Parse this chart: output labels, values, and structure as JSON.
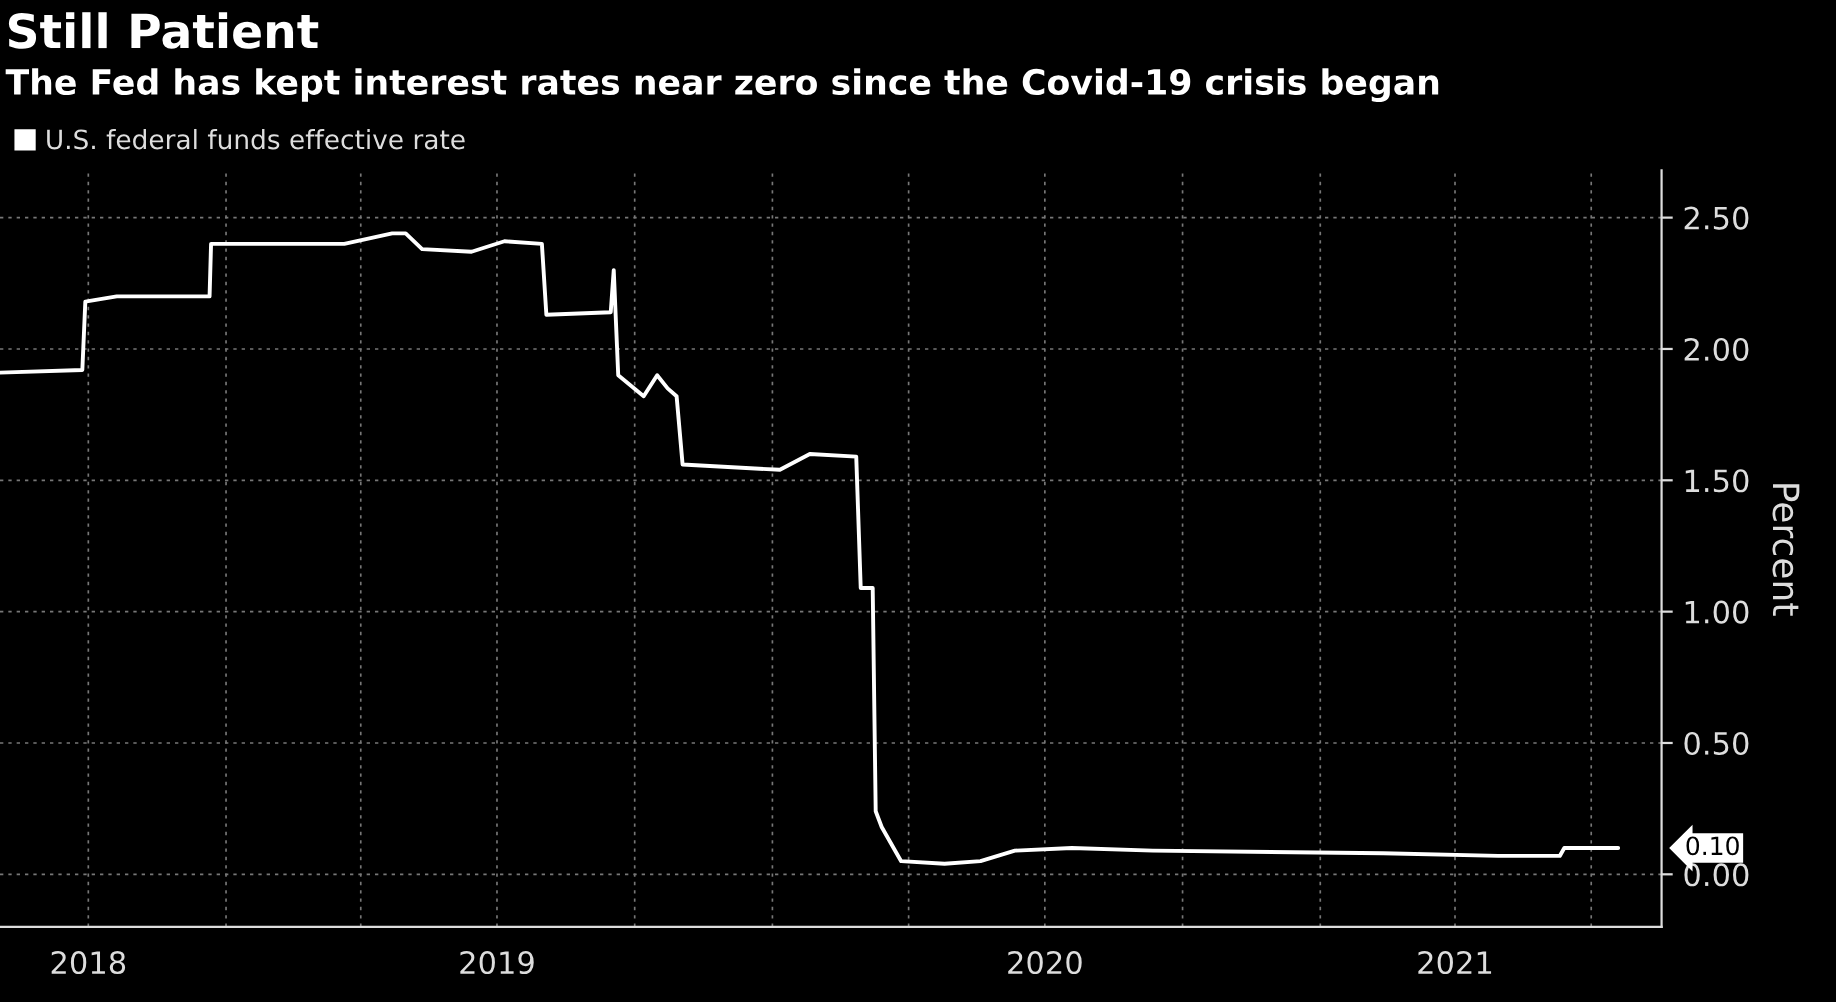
{
  "chart_data": {
    "type": "line",
    "title": "Still Patient",
    "subtitle": "The Fed has kept interest rates near zero since the Covid-19 crisis began",
    "ylabel": "Percent",
    "x": [
      "2018-08-03",
      "2018-09-27",
      "2018-09-29",
      "2018-10-20",
      "2018-12-21",
      "2018-12-22",
      "2019-03-21",
      "2019-04-22",
      "2019-05-01",
      "2019-05-12",
      "2019-06-14",
      "2019-07-06",
      "2019-07-31",
      "2019-08-03",
      "2019-09-15",
      "2019-09-17",
      "2019-09-20",
      "2019-10-07",
      "2019-10-16",
      "2019-10-23",
      "2019-10-29",
      "2019-11-02",
      "2020-01-06",
      "2020-01-26",
      "2020-02-26",
      "2020-02-29",
      "2020-03-08",
      "2020-03-10",
      "2020-03-14",
      "2020-03-23",
      "2020-03-27",
      "2020-04-25",
      "2020-05-19",
      "2020-06-11",
      "2020-07-19",
      "2020-09-11",
      "2021-02-12",
      "2021-04-30",
      "2021-06-10",
      "2021-06-13",
      "2021-07-19"
    ],
    "series": [
      {
        "name": "U.S. federal funds effective rate",
        "color": "#ffffff",
        "values": [
          1.91,
          1.92,
          2.18,
          2.2,
          2.2,
          2.4,
          2.4,
          2.44,
          2.44,
          2.38,
          2.37,
          2.41,
          2.4,
          2.13,
          2.14,
          2.3,
          1.9,
          1.82,
          1.9,
          1.85,
          1.82,
          1.56,
          1.54,
          1.6,
          1.59,
          1.09,
          1.09,
          0.24,
          0.18,
          0.09,
          0.05,
          0.04,
          0.05,
          0.09,
          0.1,
          0.09,
          0.08,
          0.07,
          0.07,
          0.1,
          0.1
        ]
      }
    ],
    "xlim": [
      "2018-08-03",
      "2021-08-17"
    ],
    "xticks": [
      {
        "value": "2018-10-01",
        "label": "2018"
      },
      {
        "value": "2019-01-01",
        "label": null
      },
      {
        "value": "2019-04-01",
        "label": null
      },
      {
        "value": "2019-07-01",
        "label": "2019"
      },
      {
        "value": "2019-10-01",
        "label": null
      },
      {
        "value": "2020-01-01",
        "label": null
      },
      {
        "value": "2020-04-01",
        "label": null
      },
      {
        "value": "2020-07-01",
        "label": "2020"
      },
      {
        "value": "2020-10-01",
        "label": null
      },
      {
        "value": "2021-01-01",
        "label": null
      },
      {
        "value": "2021-04-01",
        "label": "2021"
      },
      {
        "value": "2021-07-01",
        "label": null
      }
    ],
    "ylim": [
      -0.2,
      2.68
    ],
    "yticks": [
      {
        "value": 0,
        "label": "0.00"
      },
      {
        "value": 0.5,
        "label": "0.50"
      },
      {
        "value": 1,
        "label": "1.00"
      },
      {
        "value": 1.5,
        "label": "1.50"
      },
      {
        "value": 2,
        "label": "2.00"
      },
      {
        "value": 2.5,
        "label": "2.50"
      }
    ],
    "annotations": [
      {
        "text": "0.10",
        "x": "2021-07-19",
        "y": 0.1
      }
    ],
    "grid": true,
    "legend": "top left",
    "marker": "none",
    "line_style": "solid"
  }
}
